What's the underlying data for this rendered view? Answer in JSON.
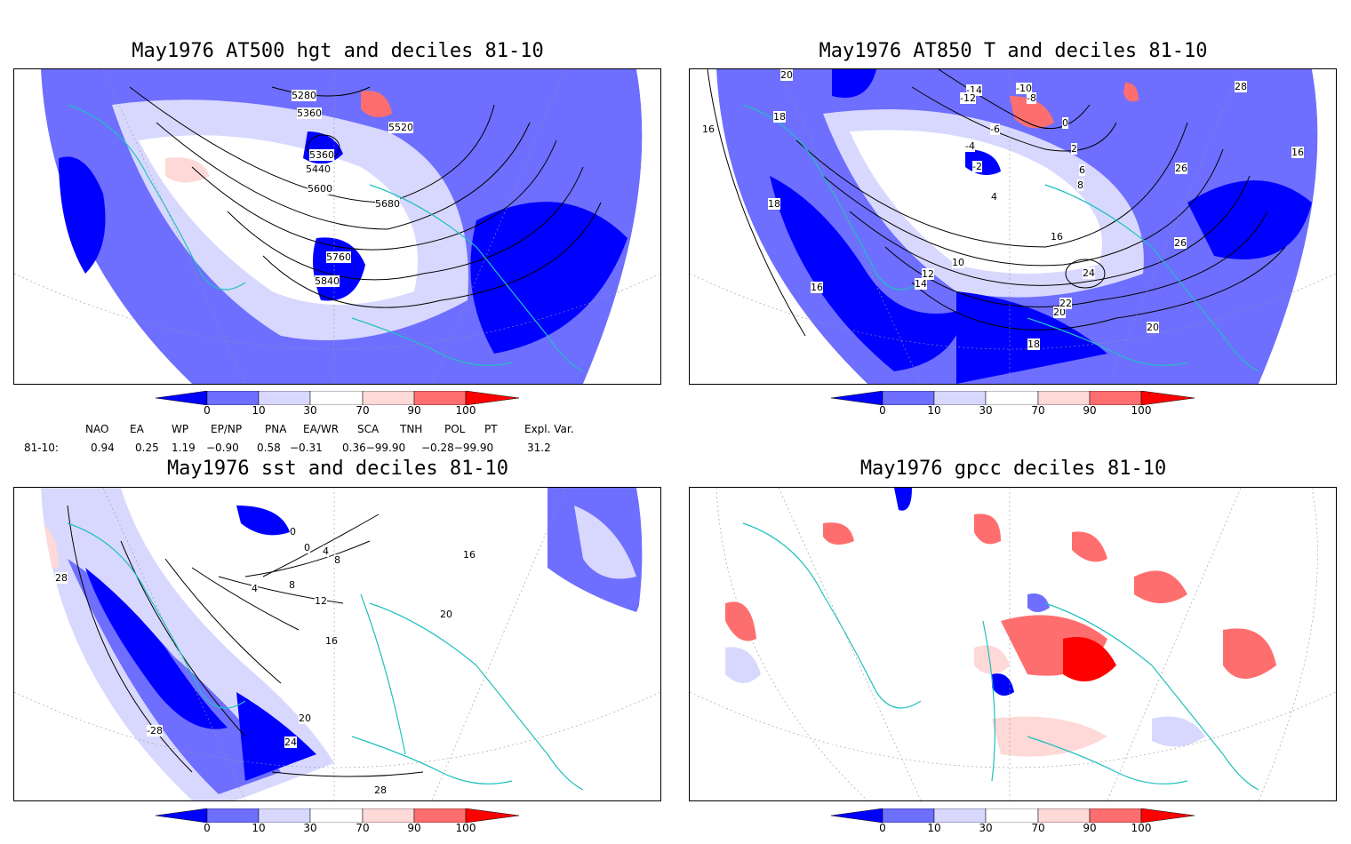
{
  "panels": [
    {
      "id": "p1",
      "title": "May1976 AT500 hgt and deciles 81-10",
      "contour_labels": [
        "5280",
        "5360",
        "5520",
        "5360",
        "5440",
        "5600",
        "5680",
        "5760",
        "5840"
      ]
    },
    {
      "id": "p2",
      "title": "May1976 AT850 T and deciles 81-10",
      "contour_labels": [
        "20",
        "18",
        "16",
        "18",
        "16",
        "-14",
        "-12",
        "-10",
        "-8",
        "-6",
        "-4",
        "-2",
        "0",
        "2",
        "4",
        "6",
        "8",
        "10",
        "12",
        "14",
        "16",
        "18",
        "20",
        "22",
        "24",
        "26",
        "28",
        "26",
        "20",
        "16"
      ]
    },
    {
      "id": "p3",
      "title": "May1976 sst and deciles 81-10",
      "contour_labels": [
        "28",
        "0",
        "0",
        "4",
        "8",
        "8",
        "4",
        "12",
        "16",
        "20",
        "24",
        "28",
        "-28",
        "16",
        "20"
      ]
    },
    {
      "id": "p4",
      "title": "May1976 gpcc deciles 81-10",
      "contour_labels": []
    }
  ],
  "colorbar": {
    "ticks": [
      "0",
      "10",
      "30",
      "70",
      "90",
      "100"
    ],
    "colors": {
      "c1": "#0000ff",
      "c2": "#6e6eff",
      "c3": "#d8d8ff",
      "c4": "#ffffff",
      "c5": "#ffd8d8",
      "c6": "#ff6e6e",
      "c7": "#ff0000"
    }
  },
  "indices": {
    "headers": [
      "NAO",
      "EA",
      "WP",
      "EP/NP",
      "PNA",
      "EA/WR",
      "SCA",
      "TNH",
      "POL",
      "PT",
      "Expl. Var."
    ],
    "row_label": "81-10:",
    "values": [
      "0.94",
      "0.25",
      "1.19",
      "−0.90",
      "0.58",
      "−0.31",
      "0.36−99.90",
      "−0.28−99.90",
      "31.2"
    ]
  },
  "map_colors": {
    "coast": "#20c0c0",
    "grid": "#999999",
    "contour": "#000000"
  }
}
